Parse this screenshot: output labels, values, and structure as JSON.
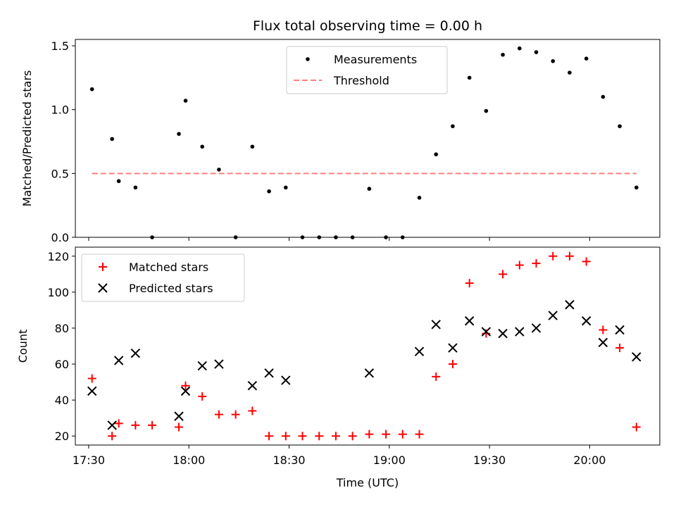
{
  "chart_data": [
    {
      "type": "scatter",
      "title": "Flux total observing time = 0.00 h",
      "xlabel": "",
      "ylabel": "Matched/Predicted stars",
      "xlim": [
        "17:26",
        "20:21"
      ],
      "ylim": [
        0,
        1.55
      ],
      "yticks": [
        0.0,
        0.5,
        1.0,
        1.5
      ],
      "ytick_labels": [
        "0.0",
        "0.5",
        "1.0",
        "1.5"
      ],
      "xticks": [
        "17:30",
        "18:00",
        "18:30",
        "19:00",
        "19:30",
        "20:00"
      ],
      "legend": {
        "position": "top-center",
        "entries": [
          "Measurements",
          "Threshold"
        ]
      },
      "series": [
        {
          "name": "Measurements",
          "marker": "dot",
          "color": "#000000",
          "points": [
            [
              "17:31",
              1.16
            ],
            [
              "17:37",
              0.77
            ],
            [
              "17:39",
              0.44
            ],
            [
              "17:44",
              0.39
            ],
            [
              "17:49",
              0.0
            ],
            [
              "17:57",
              0.81
            ],
            [
              "17:59",
              1.07
            ],
            [
              "18:04",
              0.71
            ],
            [
              "18:09",
              0.53
            ],
            [
              "18:14",
              0.0
            ],
            [
              "18:19",
              0.71
            ],
            [
              "18:24",
              0.36
            ],
            [
              "18:29",
              0.39
            ],
            [
              "18:34",
              0.0
            ],
            [
              "18:39",
              0.0
            ],
            [
              "18:44",
              0.0
            ],
            [
              "18:49",
              0.0
            ],
            [
              "18:54",
              0.38
            ],
            [
              "18:59",
              0.0
            ],
            [
              "19:04",
              0.0
            ],
            [
              "19:09",
              0.31
            ],
            [
              "19:14",
              0.65
            ],
            [
              "19:19",
              0.87
            ],
            [
              "19:24",
              1.25
            ],
            [
              "19:29",
              0.99
            ],
            [
              "19:34",
              1.43
            ],
            [
              "19:39",
              1.48
            ],
            [
              "19:44",
              1.45
            ],
            [
              "19:49",
              1.38
            ],
            [
              "19:54",
              1.29
            ],
            [
              "19:59",
              1.4
            ],
            [
              "20:04",
              1.1
            ],
            [
              "20:09",
              0.87
            ],
            [
              "20:14",
              0.39
            ]
          ]
        },
        {
          "name": "Threshold",
          "marker": "dashed-line",
          "color": "#ff7f7f",
          "points": [
            [
              "17:31",
              0.5
            ],
            [
              "20:14",
              0.5
            ]
          ]
        }
      ]
    },
    {
      "type": "scatter",
      "title": "",
      "xlabel": "Time (UTC)",
      "ylabel": "Count",
      "xlim": [
        "17:26",
        "20:21"
      ],
      "ylim": [
        15,
        125
      ],
      "yticks": [
        20,
        40,
        60,
        80,
        100,
        120
      ],
      "ytick_labels": [
        "20",
        "40",
        "60",
        "80",
        "100",
        "120"
      ],
      "xticks": [
        "17:30",
        "18:00",
        "18:30",
        "19:00",
        "19:30",
        "20:00"
      ],
      "xtick_labels": [
        "17:30",
        "18:00",
        "18:30",
        "19:00",
        "19:30",
        "20:00"
      ],
      "legend": {
        "position": "top-left",
        "entries": [
          "Matched stars",
          "Predicted stars"
        ]
      },
      "series": [
        {
          "name": "Matched stars",
          "marker": "plus",
          "color": "#ff0000",
          "points": [
            [
              "17:31",
              52
            ],
            [
              "17:37",
              20
            ],
            [
              "17:39",
              27
            ],
            [
              "17:44",
              26
            ],
            [
              "17:49",
              26
            ],
            [
              "17:57",
              25
            ],
            [
              "17:59",
              48
            ],
            [
              "18:04",
              42
            ],
            [
              "18:09",
              32
            ],
            [
              "18:14",
              32
            ],
            [
              "18:19",
              34
            ],
            [
              "18:24",
              20
            ],
            [
              "18:29",
              20
            ],
            [
              "18:34",
              20
            ],
            [
              "18:39",
              20
            ],
            [
              "18:44",
              20
            ],
            [
              "18:49",
              20
            ],
            [
              "18:54",
              21
            ],
            [
              "18:59",
              21
            ],
            [
              "19:04",
              21
            ],
            [
              "19:09",
              21
            ],
            [
              "19:14",
              53
            ],
            [
              "19:19",
              60
            ],
            [
              "19:24",
              105
            ],
            [
              "19:29",
              77
            ],
            [
              "19:34",
              110
            ],
            [
              "19:39",
              115
            ],
            [
              "19:44",
              116
            ],
            [
              "19:49",
              120
            ],
            [
              "19:54",
              120
            ],
            [
              "19:59",
              117
            ],
            [
              "20:04",
              79
            ],
            [
              "20:09",
              69
            ],
            [
              "20:14",
              25
            ]
          ]
        },
        {
          "name": "Predicted stars",
          "marker": "x",
          "color": "#000000",
          "points": [
            [
              "17:31",
              45
            ],
            [
              "17:37",
              26
            ],
            [
              "17:39",
              62
            ],
            [
              "17:44",
              66
            ],
            [
              "17:57",
              31
            ],
            [
              "17:59",
              45
            ],
            [
              "18:04",
              59
            ],
            [
              "18:09",
              60
            ],
            [
              "18:19",
              48
            ],
            [
              "18:24",
              55
            ],
            [
              "18:29",
              51
            ],
            [
              "18:54",
              55
            ],
            [
              "19:09",
              67
            ],
            [
              "19:14",
              82
            ],
            [
              "19:19",
              69
            ],
            [
              "19:24",
              84
            ],
            [
              "19:29",
              78
            ],
            [
              "19:34",
              77
            ],
            [
              "19:39",
              78
            ],
            [
              "19:44",
              80
            ],
            [
              "19:49",
              87
            ],
            [
              "19:54",
              93
            ],
            [
              "19:59",
              84
            ],
            [
              "20:04",
              72
            ],
            [
              "20:09",
              79
            ],
            [
              "20:14",
              64
            ]
          ]
        }
      ]
    }
  ]
}
